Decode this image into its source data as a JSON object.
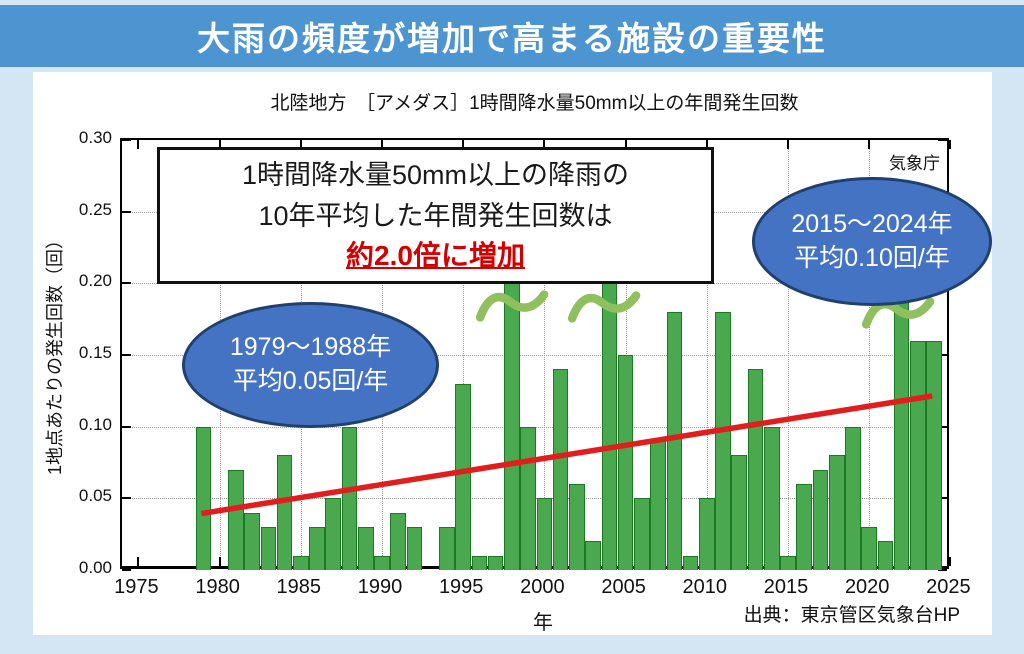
{
  "page": {
    "header_title": "大雨の頻度が増加で高まる施設の重要性",
    "source_note": "出典：東京管区気象台HP"
  },
  "chart_data": {
    "type": "bar",
    "title": "北陸地方　［アメダス］1時間降水量50mm以上の年間発生回数",
    "agency_label": "気象庁",
    "xlabel": "年",
    "ylabel": "1地点あたりの発生回数（回）",
    "xlim": [
      1975,
      2025
    ],
    "ylim": [
      0,
      0.3
    ],
    "xticks": [
      1975,
      1980,
      1985,
      1990,
      1995,
      2000,
      2005,
      2010,
      2015,
      2020,
      2025
    ],
    "yticks": [
      0.0,
      0.05,
      0.1,
      0.15,
      0.2,
      0.25,
      0.3
    ],
    "grid_x": [
      1980,
      1985,
      1990,
      1995,
      2000,
      2005,
      2010,
      2015,
      2020
    ],
    "grid_y": [
      0.05,
      0.1,
      0.15,
      0.2,
      0.25
    ],
    "x": [
      1979,
      1980,
      1981,
      1982,
      1983,
      1984,
      1985,
      1986,
      1987,
      1988,
      1989,
      1990,
      1991,
      1992,
      1993,
      1994,
      1995,
      1996,
      1997,
      1998,
      1999,
      2000,
      2001,
      2002,
      2003,
      2004,
      2005,
      2006,
      2007,
      2008,
      2009,
      2010,
      2011,
      2012,
      2013,
      2014,
      2015,
      2016,
      2017,
      2018,
      2019,
      2020,
      2021,
      2022,
      2023,
      2024
    ],
    "values": [
      0.1,
      0,
      0.07,
      0.04,
      0.03,
      0.08,
      0.01,
      0.03,
      0.05,
      0.1,
      0.03,
      0.01,
      0.04,
      0.03,
      0,
      0.03,
      0.13,
      0.01,
      0.01,
      0.2,
      0.1,
      0.05,
      0.14,
      0.06,
      0.02,
      0.2,
      0.15,
      0.05,
      0.09,
      0.18,
      0.01,
      0.05,
      0.18,
      0.08,
      0.14,
      0.1,
      0.01,
      0.06,
      0.07,
      0.08,
      0.1,
      0.03,
      0.02,
      0.2,
      0.16,
      0.16
    ],
    "capped_years": [
      1998,
      2004,
      2022
    ],
    "trend_line": {
      "x1": 1979,
      "y1": 0.038,
      "x2": 2024,
      "y2": 0.12
    },
    "colors": {
      "bar_fill": "#4aa84e",
      "bar_border": "#1d7a24",
      "trend": "#e21d1d",
      "break_mark": "#8fbf5e",
      "grid": "#999999",
      "ellipse_fill": "#4573c4",
      "ellipse_border": "#20406e",
      "header_bg": "#4d95d0",
      "page_bg": "#d4e5f4",
      "highlight_red": "#d40000"
    }
  },
  "annotations": {
    "info_box": {
      "line1": "1時間降水量50mm以上の降雨の",
      "line2": "10年平均した年間発生回数は",
      "line3": "約2.0倍に増加"
    },
    "ellipse_left": {
      "line1": "1979〜1988年",
      "line2": "平均0.05回/年"
    },
    "ellipse_right": {
      "line1": "2015〜2024年",
      "line2": "平均0.10回/年"
    }
  }
}
